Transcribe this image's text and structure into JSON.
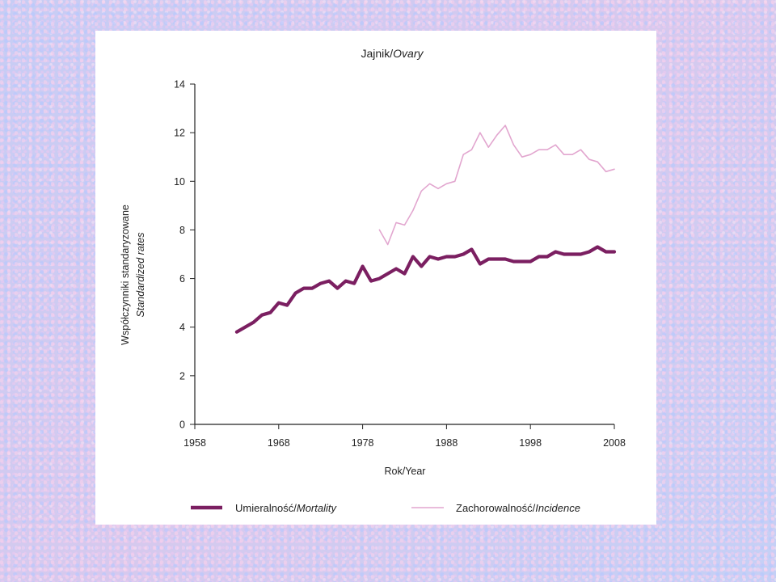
{
  "chart_data": {
    "type": "line",
    "title": {
      "plain": "Jajnik/",
      "italic": "Ovary"
    },
    "ylabel": {
      "plain": "Współczynniki standaryzowane",
      "italic": "Standardized rates"
    },
    "xlabel": "Rok/Year",
    "ylim": [
      0,
      14
    ],
    "xlim": [
      1958,
      2008
    ],
    "yticks": [
      0,
      2,
      4,
      6,
      8,
      10,
      12,
      14
    ],
    "xticks": [
      1958,
      1968,
      1978,
      1988,
      1998,
      2008
    ],
    "grid": false,
    "legend_position": "bottom",
    "series": [
      {
        "label_plain": "Umieralność/",
        "label_italic": "Mortality",
        "color": "#7b1f61",
        "line": "thick",
        "x": [
          1963,
          1964,
          1965,
          1966,
          1967,
          1968,
          1969,
          1970,
          1971,
          1972,
          1973,
          1974,
          1975,
          1976,
          1977,
          1978,
          1979,
          1980,
          1981,
          1982,
          1983,
          1984,
          1985,
          1986,
          1987,
          1988,
          1989,
          1990,
          1991,
          1992,
          1993,
          1994,
          1995,
          1996,
          1997,
          1998,
          1999,
          2000,
          2001,
          2002,
          2003,
          2004,
          2005,
          2006,
          2007,
          2008
        ],
        "y": [
          3.8,
          4.0,
          4.2,
          4.5,
          4.6,
          5.0,
          4.9,
          5.4,
          5.6,
          5.6,
          5.8,
          5.9,
          5.6,
          5.9,
          5.8,
          6.5,
          5.9,
          6.0,
          6.2,
          6.4,
          6.2,
          6.9,
          6.5,
          6.9,
          6.8,
          6.9,
          6.9,
          7.0,
          7.2,
          6.6,
          6.8,
          6.8,
          6.8,
          6.7,
          6.7,
          6.7,
          6.9,
          6.9,
          7.1,
          7.0,
          7.0,
          7.0,
          7.1,
          7.3,
          7.1,
          7.1
        ]
      },
      {
        "label_plain": "Zachorowalność/",
        "label_italic": "Incidence",
        "color": "#e2a6cf",
        "line": "thin",
        "x": [
          1980,
          1981,
          1982,
          1983,
          1984,
          1985,
          1986,
          1987,
          1988,
          1989,
          1990,
          1991,
          1992,
          1993,
          1994,
          1995,
          1996,
          1997,
          1998,
          1999,
          2000,
          2001,
          2002,
          2003,
          2004,
          2005,
          2006,
          2007,
          2008
        ],
        "y": [
          8.0,
          7.4,
          8.3,
          8.2,
          8.8,
          9.6,
          9.9,
          9.7,
          9.9,
          10.0,
          11.1,
          11.3,
          12.0,
          11.4,
          11.9,
          12.3,
          11.5,
          11.0,
          11.1,
          11.3,
          11.3,
          11.5,
          11.1,
          11.1,
          11.3,
          10.9,
          10.8,
          10.4,
          10.5
        ]
      }
    ]
  }
}
